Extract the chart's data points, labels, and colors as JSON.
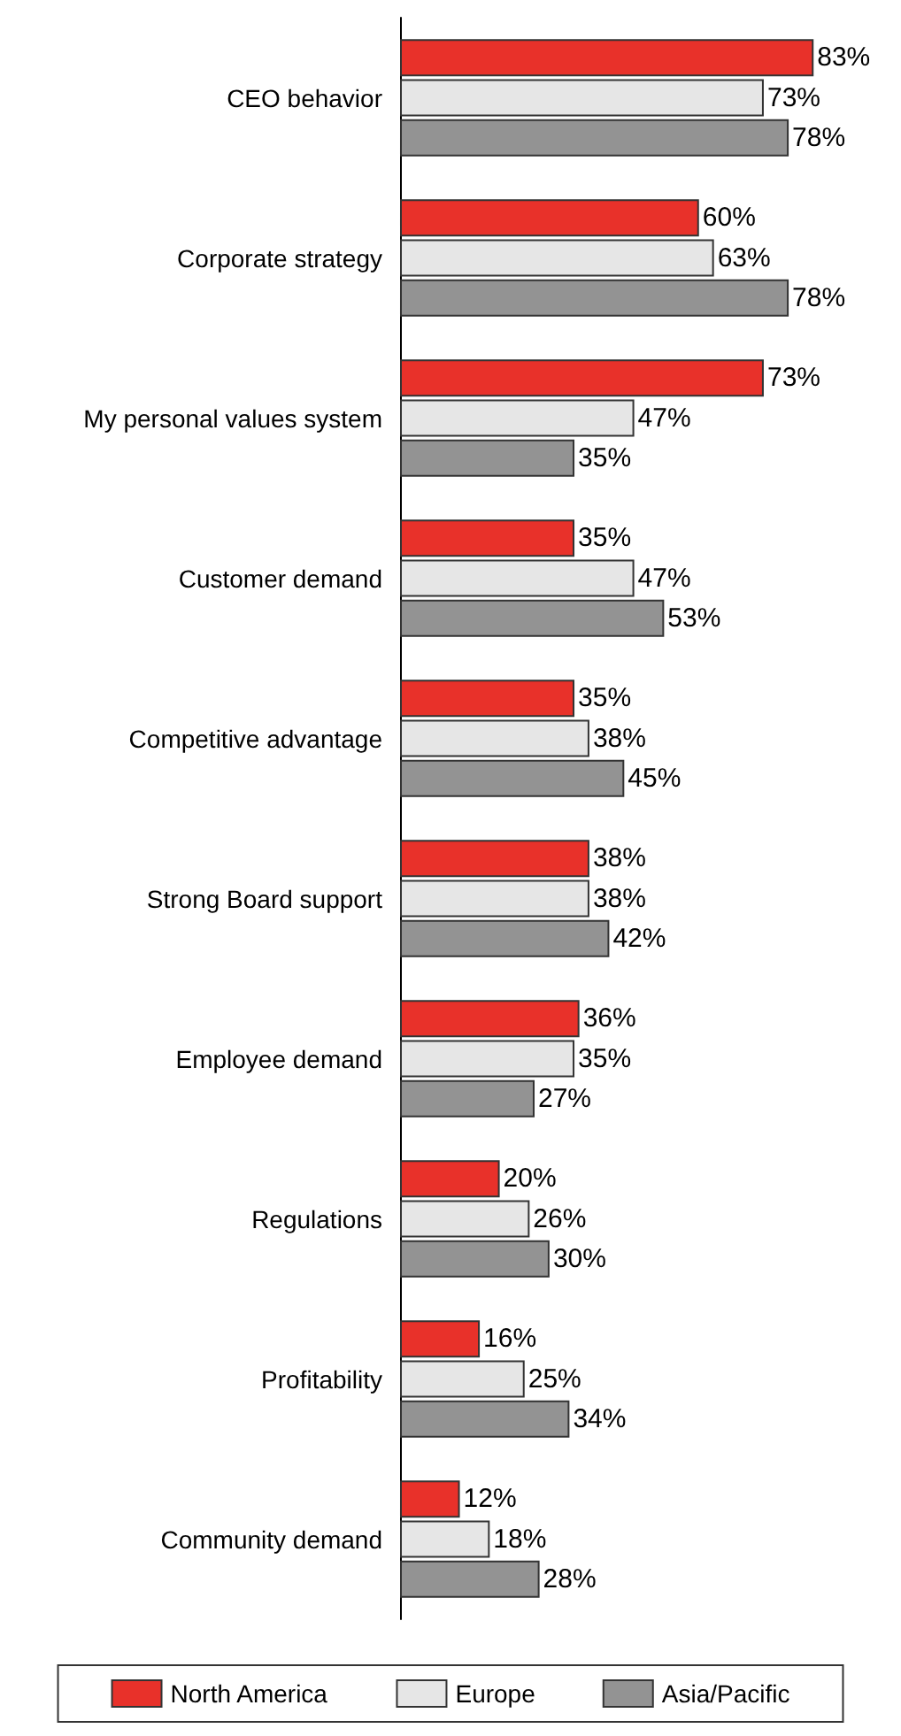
{
  "chart_data": {
    "type": "bar",
    "orientation": "horizontal",
    "legend": "bottom",
    "categories": [
      "CEO behavior",
      "Corporate strategy",
      "My personal values system",
      "Customer demand",
      "Competitive advantage",
      "Strong Board support",
      "Employee demand",
      "Regulations",
      "Profitability",
      "Community demand"
    ],
    "series": [
      {
        "name": "North America",
        "color": "#e8312a",
        "values": [
          83,
          60,
          73,
          35,
          35,
          38,
          36,
          20,
          16,
          12
        ],
        "value_labels": [
          "83%",
          "60%",
          "73%",
          "35%",
          "35%",
          "38%",
          "36%",
          "20%",
          "16%",
          "12%"
        ]
      },
      {
        "name": "Europe",
        "color": "#e6e6e6",
        "values": [
          73,
          63,
          47,
          47,
          38,
          38,
          35,
          26,
          25,
          18
        ],
        "value_labels": [
          "73%",
          "63%",
          "47%",
          "47%",
          "38%",
          "38%",
          "35%",
          "26%",
          "25%",
          "18%"
        ]
      },
      {
        "name": "Asia/Pacific",
        "color": "#939393",
        "values": [
          78,
          78,
          35,
          53,
          45,
          42,
          27,
          30,
          34,
          28
        ],
        "value_labels": [
          "78%",
          "78%",
          "35%",
          "53%",
          "45%",
          "42%",
          "27%",
          "30%",
          "34%",
          "28%"
        ]
      }
    ]
  }
}
